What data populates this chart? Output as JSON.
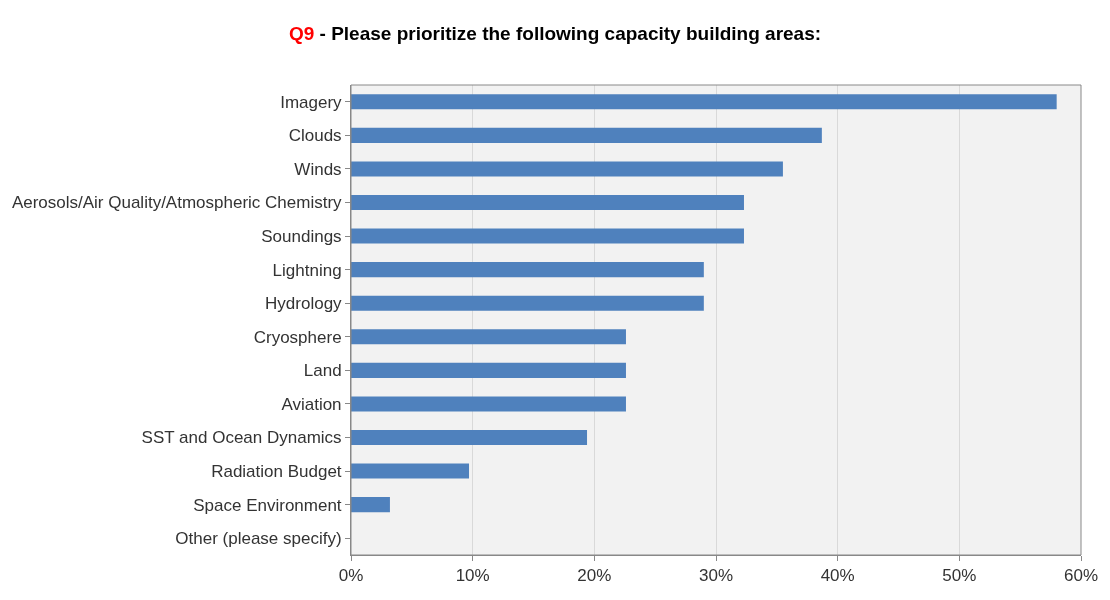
{
  "chart_data": {
    "type": "bar",
    "orientation": "horizontal",
    "title": "Q9 - Please prioritize the following capacity building areas:",
    "categories": [
      "Imagery",
      "Clouds",
      "Winds",
      "Aerosols/Air Quality/Atmospheric Chemistry",
      "Soundings",
      "Lightning",
      "Hydrology",
      "Cryosphere",
      "Land",
      "Aviation",
      "SST and Ocean Dynamics",
      "Radiation Budget",
      "Space Environment",
      "Other (please specify)"
    ],
    "values": [
      58,
      38.7,
      35.5,
      32.3,
      32.3,
      29.0,
      29.0,
      22.6,
      22.6,
      22.6,
      19.4,
      9.7,
      3.2,
      0
    ],
    "color": "#4f81bd",
    "xlim": [
      0,
      60
    ],
    "xticks": [
      {
        "value": 0,
        "label": "0%"
      },
      {
        "value": 10,
        "label": "10%"
      },
      {
        "value": 20,
        "label": "20%"
      },
      {
        "value": 30,
        "label": "30%"
      },
      {
        "value": 40,
        "label": "40%"
      },
      {
        "value": 50,
        "label": "50%"
      },
      {
        "value": 60,
        "label": "60%"
      }
    ],
    "grid": "x"
  }
}
